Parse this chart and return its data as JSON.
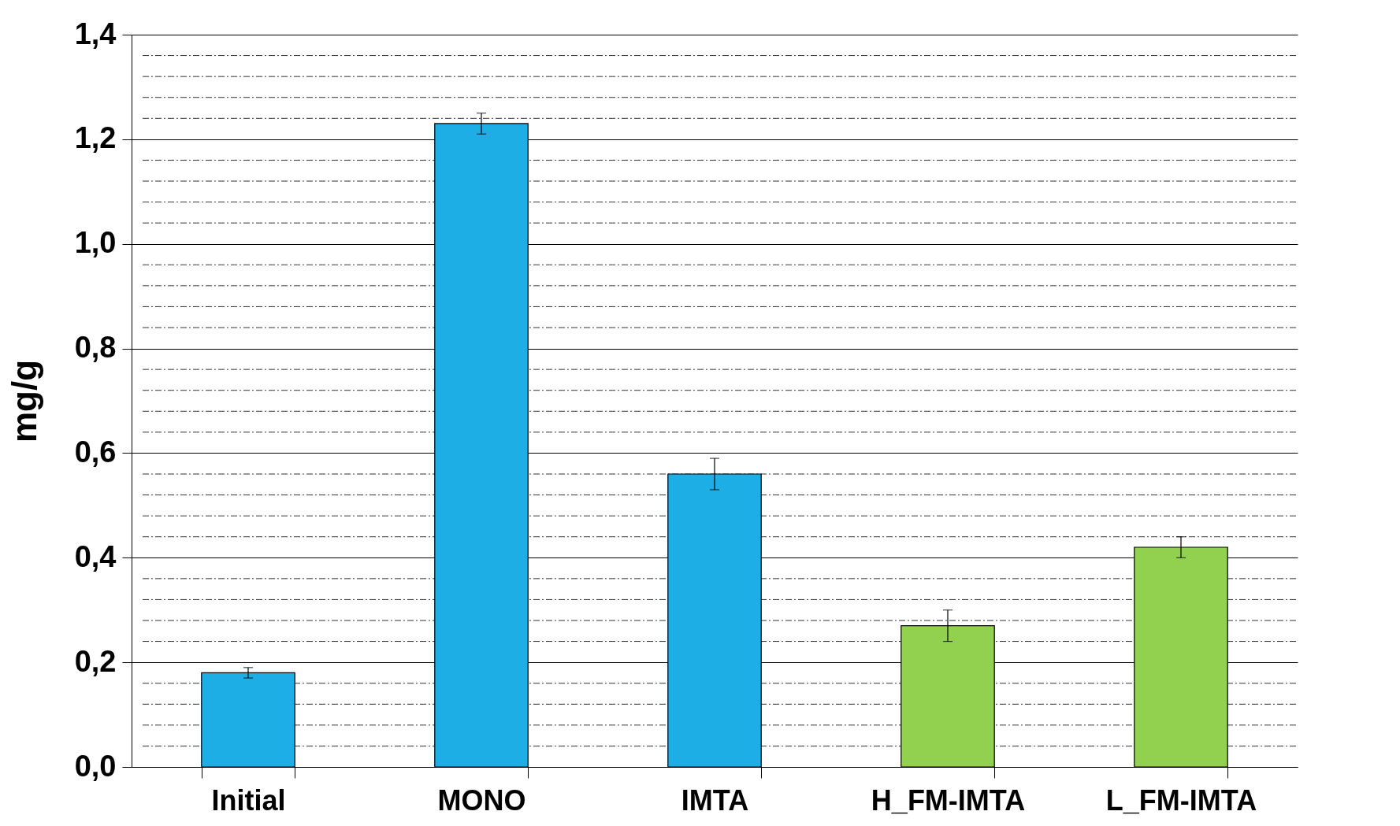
{
  "chart_data": {
    "type": "bar",
    "ylabel": "mg/g",
    "categories": [
      "Initial",
      "MONO",
      "IMTA",
      "H_FM-IMTA",
      "L_FM-IMTA"
    ],
    "values": [
      0.18,
      1.23,
      0.56,
      0.27,
      0.42
    ],
    "errors": [
      0.01,
      0.02,
      0.03,
      0.03,
      0.02
    ],
    "colors": [
      "#1eaee6",
      "#1eaee6",
      "#1eaee6",
      "#92d050",
      "#92d050"
    ],
    "ylim": [
      0,
      1.4
    ],
    "yticks": [
      {
        "value": 0,
        "label": "0,0"
      },
      {
        "value": 0.04,
        "label": null
      },
      {
        "value": 0.08,
        "label": null
      },
      {
        "value": 0.12,
        "label": null
      },
      {
        "value": 0.16,
        "label": null
      },
      {
        "value": 0.2,
        "label": "0,2"
      },
      {
        "value": 0.24,
        "label": null
      },
      {
        "value": 0.28,
        "label": null
      },
      {
        "value": 0.32,
        "label": null
      },
      {
        "value": 0.36,
        "label": null
      },
      {
        "value": 0.4,
        "label": "0,4"
      },
      {
        "value": 0.44,
        "label": null
      },
      {
        "value": 0.48,
        "label": null
      },
      {
        "value": 0.52,
        "label": null
      },
      {
        "value": 0.56,
        "label": null
      },
      {
        "value": 0.6,
        "label": "0,6"
      },
      {
        "value": 0.64,
        "label": null
      },
      {
        "value": 0.68,
        "label": null
      },
      {
        "value": 0.72,
        "label": null
      },
      {
        "value": 0.76,
        "label": null
      },
      {
        "value": 0.8,
        "label": "0,8"
      },
      {
        "value": 0.84,
        "label": null
      },
      {
        "value": 0.88,
        "label": null
      },
      {
        "value": 0.92,
        "label": null
      },
      {
        "value": 0.96,
        "label": null
      },
      {
        "value": 1.0,
        "label": "1,0"
      },
      {
        "value": 1.04,
        "label": null
      },
      {
        "value": 1.08,
        "label": null
      },
      {
        "value": 1.12,
        "label": null
      },
      {
        "value": 1.16,
        "label": null
      },
      {
        "value": 1.2,
        "label": "1,2"
      },
      {
        "value": 1.24,
        "label": null
      },
      {
        "value": 1.28,
        "label": null
      },
      {
        "value": 1.32,
        "label": null
      },
      {
        "value": 1.36,
        "label": null
      },
      {
        "value": 1.4,
        "label": "1,4"
      }
    ],
    "grid": "y"
  }
}
